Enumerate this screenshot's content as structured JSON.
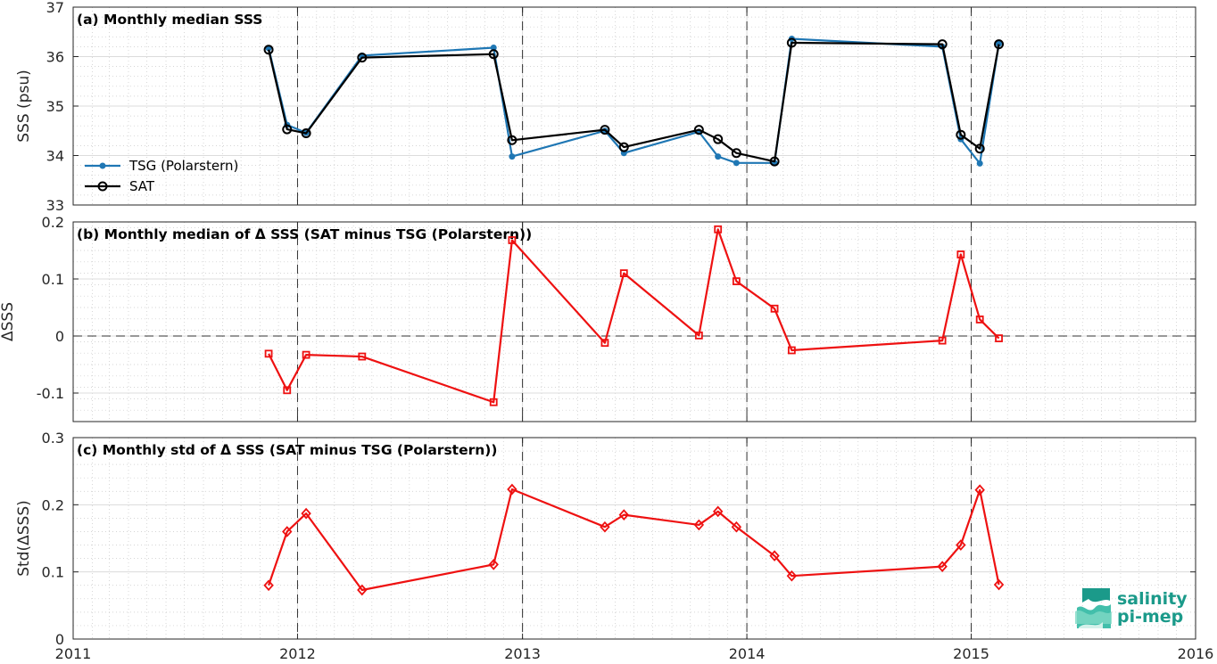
{
  "chart_data": [
    {
      "type": "line",
      "panel": "a",
      "title": "(a) Monthly median SSS",
      "xlabel": "",
      "ylabel": "SSS (psu)",
      "xlim": [
        "2011-01-01",
        "2016-01-01"
      ],
      "ylim": [
        33,
        37
      ],
      "yticks": [
        33,
        34,
        35,
        36,
        37
      ],
      "ytick_labels": [
        "33",
        "34",
        "35",
        "36",
        "37"
      ],
      "grid": true,
      "legend": "bottom-left",
      "series": [
        {
          "name": "TSG (Polarstern)",
          "color": "#1f77b4",
          "marker": "dot",
          "x": [
            "2011-11-15",
            "2011-12-15",
            "2012-01-15",
            "2012-04-15",
            "2012-11-15",
            "2012-12-15",
            "2013-05-15",
            "2013-06-15",
            "2013-10-15",
            "2013-11-15",
            "2013-12-15",
            "2014-02-15",
            "2014-03-15",
            "2014-11-15",
            "2014-12-15",
            "2015-01-15",
            "2015-02-15"
          ],
          "values": [
            36.17,
            34.62,
            34.46,
            36.02,
            36.18,
            33.98,
            34.5,
            34.05,
            34.48,
            33.98,
            33.85,
            33.85,
            36.36,
            36.2,
            34.33,
            33.84,
            36.26
          ]
        },
        {
          "name": "SAT",
          "color": "#000000",
          "marker": "circle",
          "x": [
            "2011-11-15",
            "2011-12-15",
            "2012-01-15",
            "2012-04-15",
            "2012-11-15",
            "2012-12-15",
            "2013-05-15",
            "2013-06-15",
            "2013-10-15",
            "2013-11-15",
            "2013-12-15",
            "2014-02-15",
            "2014-03-15",
            "2014-11-15",
            "2014-12-15",
            "2015-01-15",
            "2015-02-15"
          ],
          "values": [
            36.14,
            34.53,
            34.45,
            35.98,
            36.05,
            34.31,
            34.52,
            34.17,
            34.52,
            34.33,
            34.05,
            33.88,
            36.28,
            36.25,
            34.42,
            34.14,
            36.25
          ]
        }
      ]
    },
    {
      "type": "line",
      "panel": "b",
      "title": "(b) Monthly median of Δ SSS (SAT minus TSG (Polarstern))",
      "xlabel": "",
      "ylabel": "ΔSSS",
      "xlim": [
        "2011-01-01",
        "2016-01-01"
      ],
      "ylim": [
        -0.15,
        0.2
      ],
      "yticks": [
        -0.1,
        0,
        0.1,
        0.2
      ],
      "ytick_labels": [
        "-0.1",
        "0",
        "0.1",
        "0.2"
      ],
      "grid": true,
      "series": [
        {
          "name": "",
          "color": "#ee1111",
          "marker": "square",
          "x": [
            "2011-11-15",
            "2011-12-15",
            "2012-01-15",
            "2012-04-15",
            "2012-11-15",
            "2012-12-15",
            "2013-05-15",
            "2013-06-15",
            "2013-10-15",
            "2013-11-15",
            "2013-12-15",
            "2014-02-15",
            "2014-03-15",
            "2014-11-15",
            "2014-12-15",
            "2015-01-15",
            "2015-02-15"
          ],
          "values": [
            -0.031,
            -0.095,
            -0.033,
            -0.036,
            -0.116,
            0.168,
            -0.012,
            0.11,
            0.001,
            0.187,
            0.096,
            0.048,
            -0.025,
            -0.008,
            0.143,
            0.029,
            -0.004
          ]
        }
      ]
    },
    {
      "type": "line",
      "panel": "c",
      "title": "(c) Monthly std of Δ SSS (SAT minus TSG (Polarstern))",
      "xlabel": "",
      "ylabel": "Std(ΔSSS)",
      "xlim": [
        "2011-01-01",
        "2016-01-01"
      ],
      "ylim": [
        0,
        0.3
      ],
      "yticks": [
        0,
        0.1,
        0.2,
        0.3
      ],
      "ytick_labels": [
        "0",
        "0.1",
        "0.2",
        "0.3"
      ],
      "xticks": [
        "2011-01-01",
        "2012-01-01",
        "2013-01-01",
        "2014-01-01",
        "2015-01-01",
        "2016-01-01"
      ],
      "xtick_labels": [
        "2011",
        "2012",
        "2013",
        "2014",
        "2015",
        "2016"
      ],
      "grid": true,
      "series": [
        {
          "name": "",
          "color": "#ee1111",
          "marker": "diamond",
          "x": [
            "2011-11-15",
            "2011-12-15",
            "2012-01-15",
            "2012-04-15",
            "2012-11-15",
            "2012-12-15",
            "2013-05-15",
            "2013-06-15",
            "2013-10-15",
            "2013-11-15",
            "2013-12-15",
            "2014-02-15",
            "2014-03-15",
            "2014-11-15",
            "2014-12-15",
            "2015-01-15",
            "2015-02-15"
          ],
          "values": [
            0.08,
            0.16,
            0.187,
            0.073,
            0.111,
            0.223,
            0.167,
            0.185,
            0.17,
            0.19,
            0.167,
            0.124,
            0.094,
            0.108,
            0.14,
            0.222,
            0.081
          ]
        }
      ]
    }
  ],
  "logo": {
    "line1": "salinity",
    "line2": "pi-mep",
    "color": "#1b9a8a"
  }
}
